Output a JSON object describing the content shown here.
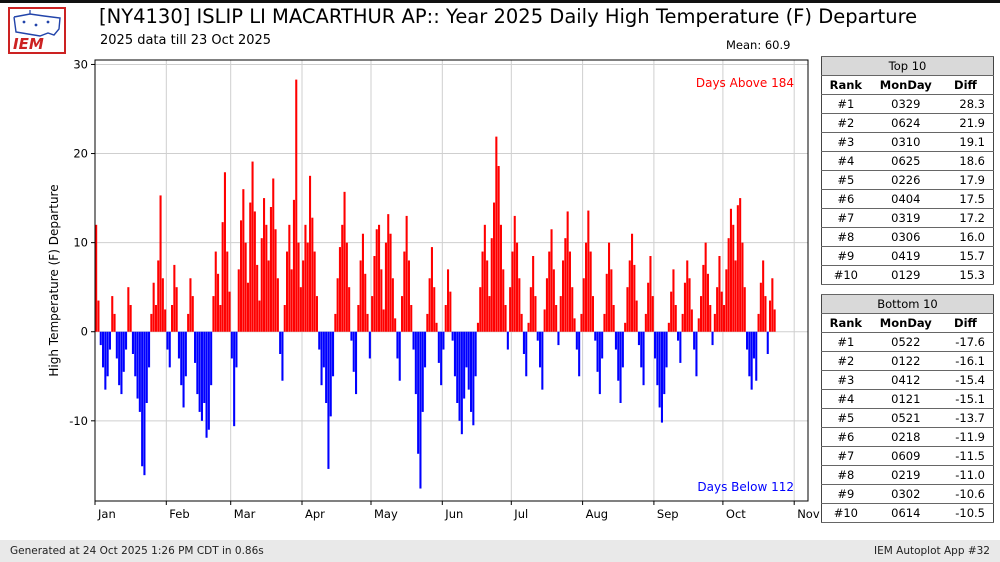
{
  "header": {
    "logo_text": "IEM",
    "title": "[NY4130] ISLIP LI MACARTHUR AP:: Year 2025 Daily High Temperature (F) Departure",
    "subtitle": "2025 data till 23 Oct 2025",
    "mean": "Mean: 60.9"
  },
  "top10": {
    "title": "Top 10",
    "headers": [
      "Rank",
      "MonDay",
      "Diff"
    ],
    "rows": [
      {
        "rank": "#1",
        "monday": "0329",
        "diff": "28.3"
      },
      {
        "rank": "#2",
        "monday": "0624",
        "diff": "21.9"
      },
      {
        "rank": "#3",
        "monday": "0310",
        "diff": "19.1"
      },
      {
        "rank": "#4",
        "monday": "0625",
        "diff": "18.6"
      },
      {
        "rank": "#5",
        "monday": "0226",
        "diff": "17.9"
      },
      {
        "rank": "#6",
        "monday": "0404",
        "diff": "17.5"
      },
      {
        "rank": "#7",
        "monday": "0319",
        "diff": "17.2"
      },
      {
        "rank": "#8",
        "monday": "0306",
        "diff": "16.0"
      },
      {
        "rank": "#9",
        "monday": "0419",
        "diff": "15.7"
      },
      {
        "rank": "#10",
        "monday": "0129",
        "diff": "15.3"
      }
    ]
  },
  "bottom10": {
    "title": "Bottom 10",
    "headers": [
      "Rank",
      "MonDay",
      "Diff"
    ],
    "rows": [
      {
        "rank": "#1",
        "monday": "0522",
        "diff": "-17.6"
      },
      {
        "rank": "#2",
        "monday": "0122",
        "diff": "-16.1"
      },
      {
        "rank": "#3",
        "monday": "0412",
        "diff": "-15.4"
      },
      {
        "rank": "#4",
        "monday": "0121",
        "diff": "-15.1"
      },
      {
        "rank": "#5",
        "monday": "0521",
        "diff": "-13.7"
      },
      {
        "rank": "#6",
        "monday": "0218",
        "diff": "-11.9"
      },
      {
        "rank": "#7",
        "monday": "0609",
        "diff": "-11.5"
      },
      {
        "rank": "#8",
        "monday": "0219",
        "diff": "-11.0"
      },
      {
        "rank": "#9",
        "monday": "0302",
        "diff": "-10.6"
      },
      {
        "rank": "#10",
        "monday": "0614",
        "diff": "-10.5"
      }
    ]
  },
  "footer": {
    "left": "Generated at 24 Oct 2025 1:26 PM CDT in 0.86s",
    "right": "IEM Autoplot App #32"
  },
  "chart_data": {
    "type": "bar",
    "title": "[NY4130] ISLIP LI MACARTHUR AP:: Year 2025 Daily High Temperature (F) Departure",
    "subtitle": "2025 data till 23 Oct 2025",
    "mean": 60.9,
    "ylabel": "High Temperature (F) Departure",
    "ylim": [
      -19.0,
      30.5
    ],
    "yticks": [
      -10,
      0,
      10,
      20,
      30
    ],
    "month_labels": [
      "Jan",
      "Feb",
      "Mar",
      "Apr",
      "May",
      "Jun",
      "Jul",
      "Aug",
      "Sep",
      "Oct",
      "Nov"
    ],
    "month_starts": [
      0,
      31,
      59,
      90,
      120,
      151,
      181,
      212,
      243,
      273,
      304
    ],
    "x_domain_days": 310,
    "bar_color_positive": "#ff0000",
    "bar_color_negative": "#0000ff",
    "annotations": {
      "above": "Days Above 184",
      "below": "Days Below 112"
    },
    "days_above": 184,
    "days_below": 112,
    "values": [
      12.0,
      3.5,
      -1.5,
      -4.0,
      -6.5,
      -5.0,
      -2.0,
      4.0,
      2.0,
      -3.0,
      -6.0,
      -7.0,
      -4.5,
      -2.0,
      5.0,
      3.0,
      -2.5,
      -5.0,
      -7.5,
      -9.0,
      -15.1,
      -16.1,
      -8.0,
      -4.0,
      2.0,
      5.5,
      3.0,
      8.0,
      15.3,
      6.0,
      2.5,
      -2.0,
      -4.0,
      3.0,
      7.5,
      5.0,
      -3.0,
      -6.0,
      -8.5,
      -5.0,
      2.0,
      6.0,
      4.0,
      -3.5,
      -7.0,
      -9.0,
      -10.0,
      -8.0,
      -11.9,
      -11.0,
      -6.0,
      4.0,
      9.0,
      6.5,
      3.0,
      12.3,
      17.9,
      9.0,
      4.5,
      -3.0,
      -10.6,
      -4.0,
      7.0,
      12.5,
      16.0,
      10.0,
      5.5,
      14.5,
      19.1,
      13.5,
      7.5,
      3.5,
      10.5,
      15.0,
      12.0,
      8.0,
      14.0,
      17.2,
      11.5,
      6.0,
      -2.5,
      -5.5,
      3.0,
      9.0,
      12.0,
      7.0,
      14.8,
      28.3,
      10.0,
      5.0,
      8.0,
      12.0,
      10.0,
      17.5,
      12.8,
      9.0,
      4.0,
      -2.0,
      -6.0,
      -4.0,
      -8.0,
      -15.4,
      -9.5,
      -5.0,
      2.0,
      6.0,
      9.5,
      12.0,
      15.7,
      10.0,
      5.0,
      -1.0,
      -4.5,
      -7.0,
      3.0,
      8.0,
      11.0,
      6.5,
      2.0,
      -3.0,
      4.0,
      8.5,
      11.5,
      12.0,
      7.0,
      2.5,
      10.0,
      13.2,
      11.0,
      6.0,
      1.5,
      -3.0,
      -5.5,
      4.0,
      9.0,
      13.0,
      8.0,
      3.0,
      -2.0,
      -7.0,
      -13.7,
      -17.6,
      -9.0,
      -4.0,
      2.0,
      6.0,
      9.5,
      5.0,
      1.0,
      -3.5,
      -6.0,
      -2.0,
      3.0,
      7.0,
      4.5,
      -1.0,
      -5.0,
      -8.0,
      -10.0,
      -11.5,
      -7.5,
      -4.0,
      -6.5,
      -9.0,
      -10.5,
      -5.0,
      1.0,
      5.0,
      9.0,
      12.0,
      8.0,
      4.0,
      10.5,
      14.5,
      21.9,
      18.6,
      12.0,
      7.0,
      3.0,
      -2.0,
      5.0,
      9.0,
      13.0,
      10.0,
      6.0,
      2.0,
      -2.5,
      -5.0,
      1.0,
      5.0,
      8.5,
      4.0,
      -1.0,
      -4.0,
      -6.5,
      2.5,
      6.0,
      9.0,
      11.5,
      7.0,
      3.0,
      -1.5,
      4.0,
      8.0,
      10.5,
      13.5,
      9.0,
      5.0,
      1.5,
      -2.0,
      -5.0,
      2.0,
      6.0,
      10.0,
      13.6,
      9.0,
      4.0,
      -1.0,
      -4.5,
      -7.0,
      -3.0,
      2.0,
      6.5,
      10.0,
      7.0,
      3.0,
      -2.0,
      -5.5,
      -8.0,
      -4.0,
      1.0,
      5.0,
      8.0,
      11.0,
      7.5,
      3.5,
      -1.5,
      -4.0,
      -6.0,
      2.0,
      5.5,
      8.5,
      4.0,
      -3.0,
      -6.0,
      -8.5,
      -10.2,
      -7.0,
      -4.0,
      1.0,
      4.5,
      7.0,
      3.0,
      -1.0,
      -3.5,
      2.0,
      5.5,
      8.0,
      6.0,
      2.5,
      -2.0,
      -5.0,
      1.5,
      4.0,
      7.5,
      10.0,
      6.5,
      3.0,
      -1.5,
      2.0,
      5.0,
      8.5,
      4.5,
      3.0,
      7.0,
      10.5,
      13.8,
      12.0,
      8.0,
      14.2,
      15.0,
      10.0,
      5.0,
      -2.0,
      -5.0,
      -6.5,
      -3.0,
      -5.5,
      2.0,
      5.5,
      8.0,
      4.0,
      -2.5,
      3.5,
      6.0,
      2.5
    ]
  }
}
